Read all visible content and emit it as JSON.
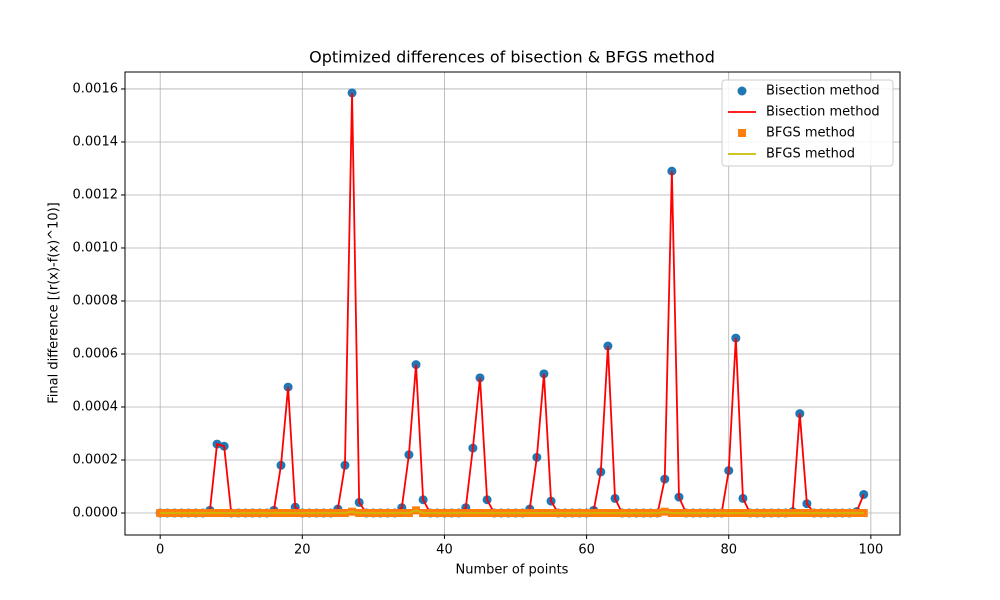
{
  "chart_data": {
    "type": "line",
    "title": "Optimized differences of bisection & BFGS method",
    "xlabel": "Number of points",
    "ylabel": "Final difference [(r(x)-f(x)^10)]",
    "x": [
      0,
      1,
      2,
      3,
      4,
      5,
      6,
      7,
      8,
      9,
      10,
      11,
      12,
      13,
      14,
      15,
      16,
      17,
      18,
      19,
      20,
      21,
      22,
      23,
      24,
      25,
      26,
      27,
      28,
      29,
      30,
      31,
      32,
      33,
      34,
      35,
      36,
      37,
      38,
      39,
      40,
      41,
      42,
      43,
      44,
      45,
      46,
      47,
      48,
      49,
      50,
      51,
      52,
      53,
      54,
      55,
      56,
      57,
      58,
      59,
      60,
      61,
      62,
      63,
      64,
      65,
      66,
      67,
      68,
      69,
      70,
      71,
      72,
      73,
      74,
      75,
      76,
      77,
      78,
      79,
      80,
      81,
      82,
      83,
      84,
      85,
      86,
      87,
      88,
      89,
      90,
      91,
      92,
      93,
      94,
      95,
      96,
      97,
      98,
      99
    ],
    "series": [
      {
        "name": "Bisection method",
        "style": "marker",
        "marker": "circle",
        "color": "#1f77b4",
        "values": [
          0,
          0,
          0,
          0,
          0,
          0,
          0,
          1e-05,
          0.00026,
          0.000252,
          0,
          0,
          0,
          0,
          0,
          0,
          1e-05,
          0.00018,
          0.000475,
          2.2e-05,
          0,
          0,
          0,
          0,
          0,
          1.5e-05,
          0.00018,
          0.001585,
          4e-05,
          0,
          0,
          0,
          0,
          0,
          2e-05,
          0.00022,
          0.00056,
          5e-05,
          0,
          0,
          0,
          0,
          0,
          2e-05,
          0.000245,
          0.00051,
          5e-05,
          0,
          0,
          0,
          0,
          0,
          1.5e-05,
          0.00021,
          0.000525,
          4.5e-05,
          0,
          0,
          0,
          0,
          0,
          1e-05,
          0.000155,
          0.00063,
          5.5e-05,
          0,
          0,
          0,
          0,
          0,
          0,
          0.000128,
          0.00129,
          6e-05,
          0,
          0,
          0,
          0,
          0,
          0,
          0.00016,
          0.00066,
          5.5e-05,
          0,
          0,
          0,
          0,
          0,
          0,
          5e-06,
          0.000375,
          3.5e-05,
          0,
          0,
          0,
          0,
          0,
          0,
          5e-06,
          7e-05
        ]
      },
      {
        "name": "Bisection method",
        "style": "line",
        "color": "#ff0000",
        "values": [
          0,
          0,
          0,
          0,
          0,
          0,
          0,
          1e-05,
          0.00026,
          0.000252,
          0,
          0,
          0,
          0,
          0,
          0,
          1e-05,
          0.00018,
          0.000475,
          2.2e-05,
          0,
          0,
          0,
          0,
          0,
          1.5e-05,
          0.00018,
          0.001585,
          4e-05,
          0,
          0,
          0,
          0,
          0,
          2e-05,
          0.00022,
          0.00056,
          5e-05,
          0,
          0,
          0,
          0,
          0,
          2e-05,
          0.000245,
          0.00051,
          5e-05,
          0,
          0,
          0,
          0,
          0,
          1.5e-05,
          0.00021,
          0.000525,
          4.5e-05,
          0,
          0,
          0,
          0,
          0,
          1e-05,
          0.000155,
          0.00063,
          5.5e-05,
          0,
          0,
          0,
          0,
          0,
          0,
          0.000128,
          0.00129,
          6e-05,
          0,
          0,
          0,
          0,
          0,
          0,
          0.00016,
          0.00066,
          5.5e-05,
          0,
          0,
          0,
          0,
          0,
          0,
          5e-06,
          0.000375,
          3.5e-05,
          0,
          0,
          0,
          0,
          0,
          0,
          5e-06,
          7e-05
        ]
      },
      {
        "name": "BFGS method",
        "style": "marker",
        "marker": "square",
        "color": "#ff7f0e",
        "values": [
          0,
          0,
          0,
          0,
          0,
          0,
          0,
          0,
          0,
          0,
          0,
          0,
          0,
          0,
          0,
          0,
          0,
          0,
          0,
          0,
          0,
          0,
          0,
          0,
          0,
          0,
          0,
          5e-06,
          0,
          0,
          0,
          0,
          0,
          0,
          0,
          0,
          1e-05,
          0,
          0,
          0,
          0,
          0,
          0,
          0,
          0,
          0,
          0,
          0,
          0,
          0,
          0,
          0,
          0,
          0,
          0,
          0,
          0,
          0,
          0,
          0,
          0,
          0,
          0,
          0,
          0,
          0,
          0,
          0,
          0,
          0,
          0,
          5e-06,
          0,
          0,
          0,
          0,
          0,
          0,
          0,
          0,
          0,
          0,
          0,
          0,
          0,
          0,
          0,
          0,
          0,
          0,
          0,
          0,
          0,
          0,
          0,
          0,
          0,
          0,
          0,
          0
        ]
      },
      {
        "name": "BFGS method",
        "style": "line",
        "color": "#ccbb00",
        "values": [
          0,
          0,
          0,
          0,
          0,
          0,
          0,
          0,
          0,
          0,
          0,
          0,
          0,
          0,
          0,
          0,
          0,
          0,
          0,
          0,
          0,
          0,
          0,
          0,
          0,
          0,
          0,
          5e-06,
          0,
          0,
          0,
          0,
          0,
          0,
          0,
          0,
          1e-05,
          0,
          0,
          0,
          0,
          0,
          0,
          0,
          0,
          0,
          0,
          0,
          0,
          0,
          0,
          0,
          0,
          0,
          0,
          0,
          0,
          0,
          0,
          0,
          0,
          0,
          0,
          0,
          0,
          0,
          0,
          0,
          0,
          0,
          0,
          5e-06,
          0,
          0,
          0,
          0,
          0,
          0,
          0,
          0,
          0,
          0,
          0,
          0,
          0,
          0,
          0,
          0,
          0,
          0,
          0,
          0,
          0,
          0,
          0,
          0,
          0,
          0,
          0,
          0
        ]
      }
    ],
    "xlim": [
      -4.95,
      104.1
    ],
    "ylim": [
      -8.3e-05,
      0.001664
    ],
    "xticks": [
      0,
      20,
      40,
      60,
      80,
      100
    ],
    "yticks": [
      {
        "value": 0,
        "label": "0.0000"
      },
      {
        "value": 0.0002,
        "label": "0.0002"
      },
      {
        "value": 0.0004,
        "label": "0.0004"
      },
      {
        "value": 0.0006,
        "label": "0.0006"
      },
      {
        "value": 0.0008,
        "label": "0.0008"
      },
      {
        "value": 0.001,
        "label": "0.0010"
      },
      {
        "value": 0.0012,
        "label": "0.0012"
      },
      {
        "value": 0.0014,
        "label": "0.0014"
      },
      {
        "value": 0.0016,
        "label": "0.0016"
      }
    ],
    "grid": true,
    "legend": "upper right"
  }
}
